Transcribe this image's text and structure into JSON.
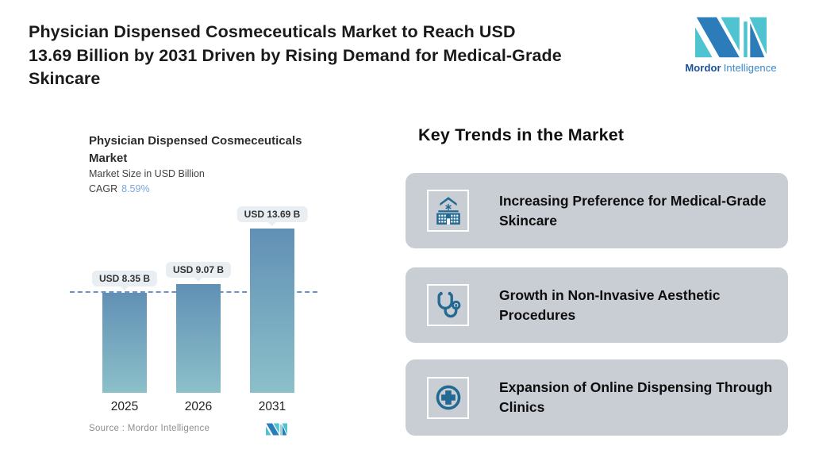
{
  "header": {
    "title_lines": [
      "Physician Dispensed Cosmeceuticals Market to Reach USD",
      "13.69 Billion by 2031 Driven by Rising Demand for Medical-Grade",
      "Skincare"
    ]
  },
  "brand": {
    "name_bold": "Mordor",
    "name_light": "Intelligence",
    "logo_blue": "#2d7cba",
    "logo_teal": "#4fc4d0"
  },
  "chart": {
    "title_lines": [
      "Physician Dispensed Cosmeceuticals",
      "Market"
    ],
    "subtitle": "Market Size in USD Billion",
    "cagr_label": "CAGR",
    "cagr_value": "8.59%",
    "source": "Source :  Mordor Intelligence"
  },
  "chart_data": {
    "type": "bar",
    "title": "Physician Dispensed Cosmeceuticals Market",
    "ylabel": "Market Size in USD Billion",
    "categories": [
      "2025",
      "2026",
      "2031"
    ],
    "values": [
      8.35,
      9.07,
      13.69
    ],
    "bar_labels": [
      "USD 8.35 B",
      "USD 9.07 B",
      "USD 13.69 B"
    ],
    "cagr_percent": 8.59,
    "reference_line_value": 8.35,
    "bar_color_top": "#6190b5",
    "bar_color_bottom": "#8cc0c9",
    "reference_line_color": "#6d92cb",
    "grid": false,
    "legend": false
  },
  "trends": {
    "heading": "Key Trends in the Market",
    "card_color": "#c9cdd4",
    "icon_color": "#226a92",
    "items": [
      {
        "icon": "hospital-icon",
        "label": "Increasing Preference for Medical-Grade Skincare"
      },
      {
        "icon": "stethoscope-icon",
        "label": "Growth in Non-Invasive Aesthetic Procedures"
      },
      {
        "icon": "medical-cross-circle-icon",
        "label": "Expansion of Online Dispensing Through Clinics"
      }
    ]
  }
}
